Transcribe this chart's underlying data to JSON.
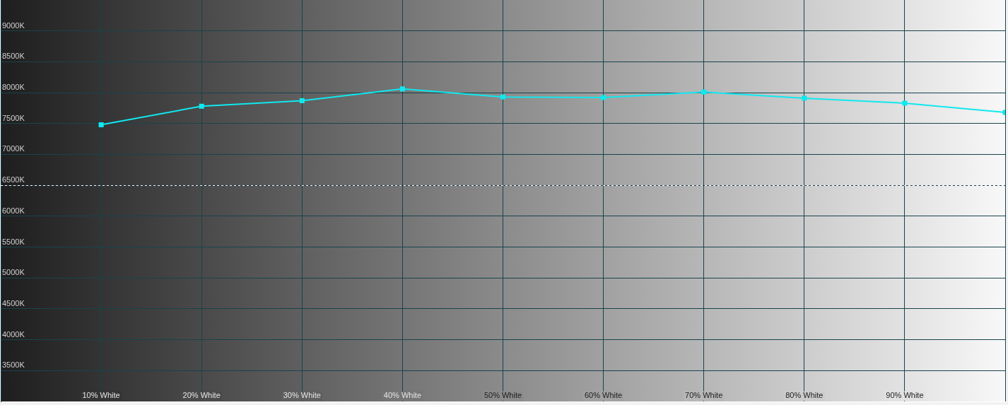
{
  "chart_data": {
    "type": "line",
    "x": [
      10,
      20,
      30,
      40,
      50,
      60,
      70,
      80,
      90,
      100
    ],
    "series": [
      {
        "color": "#10e8f0",
        "values": [
          7480,
          7780,
          7870,
          8060,
          7930,
          7920,
          8010,
          7910,
          7830,
          7680
        ]
      }
    ],
    "xlim": [
      0,
      100
    ],
    "xticks": [
      {
        "value": 10,
        "label": "10% White"
      },
      {
        "value": 20,
        "label": "20% White"
      },
      {
        "value": 30,
        "label": "30% White"
      },
      {
        "value": 40,
        "label": "40% White"
      },
      {
        "value": 50,
        "label": "50% White"
      },
      {
        "value": 60,
        "label": "60% White"
      },
      {
        "value": 70,
        "label": "70% White"
      },
      {
        "value": 80,
        "label": "80% White"
      },
      {
        "value": 90,
        "label": "90% White"
      },
      {
        "value": 100,
        "label": null
      }
    ],
    "ylim": [
      3000,
      9500
    ],
    "yticks": [
      {
        "value": 3500,
        "label": "3500K"
      },
      {
        "value": 4000,
        "label": "4000K"
      },
      {
        "value": 4500,
        "label": "4500K"
      },
      {
        "value": 5000,
        "label": "5000K"
      },
      {
        "value": 5500,
        "label": "5500K"
      },
      {
        "value": 6000,
        "label": "6000K"
      },
      {
        "value": 6500,
        "label": "6500K"
      },
      {
        "value": 7000,
        "label": "7000K"
      },
      {
        "value": 7500,
        "label": "7500K"
      },
      {
        "value": 8000,
        "label": "8000K"
      },
      {
        "value": 8500,
        "label": "8500K"
      },
      {
        "value": 9000,
        "label": "9000K"
      }
    ],
    "ref_lines": [
      {
        "axis": "y",
        "value": 6500,
        "color": "#f4f4f4",
        "line_style": "dashed"
      }
    ],
    "grid": true,
    "marker": "square",
    "line_style": "solid"
  }
}
